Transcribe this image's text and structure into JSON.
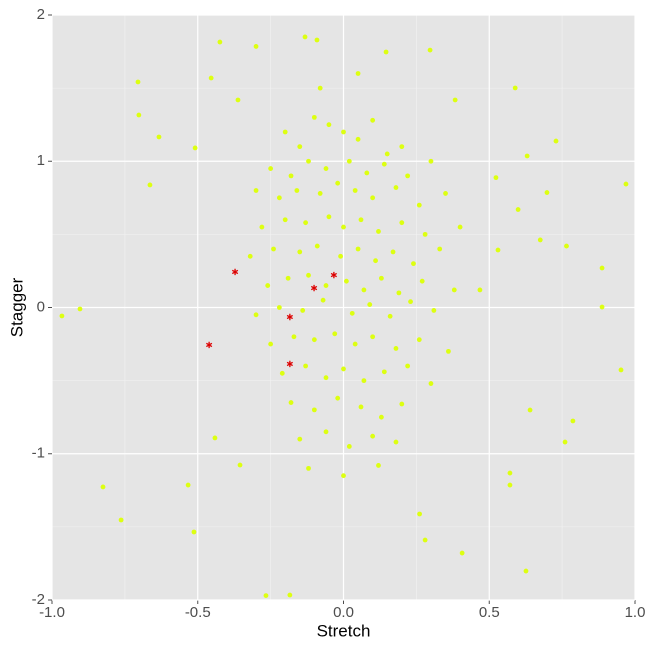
{
  "chart_data": {
    "type": "scatter",
    "x_label": "Stretch",
    "y_label": "Stagger",
    "xlim": [
      -1,
      1
    ],
    "ylim": [
      -2,
      2
    ],
    "xticks": [
      {
        "value": -1,
        "label": "-1.0"
      },
      {
        "value": -0.5,
        "label": "-0.5"
      },
      {
        "value": 0,
        "label": "0.0"
      },
      0.5,
      {
        "value": 1,
        "label": "1.0"
      }
    ],
    "yticks": [
      -2,
      -1,
      0,
      1,
      2
    ],
    "grid": true,
    "minor_grid": true,
    "series": [
      {
        "color": "#ddff11",
        "marker": "circle",
        "x": [
          -0.966,
          -0.904,
          -0.825,
          -0.763,
          -0.705,
          -0.702,
          -0.664,
          -0.633,
          -0.533,
          -0.513,
          -0.509,
          -0.454,
          -0.424,
          -0.362,
          -0.3,
          -0.441,
          -0.355,
          -0.266,
          -0.184,
          -0.132,
          -0.091,
          0.146,
          0.297,
          0.383,
          0.589,
          0.63,
          0.729,
          0.523,
          0.698,
          0.969,
          0.887,
          0.887,
          0.952,
          0.787,
          0.76,
          0.64,
          0.571,
          0.571,
          0.407,
          0.626,
          0.28,
          0.261,
          0.599,
          0.53,
          0.468,
          0.675,
          0.765,
          -0.2,
          -0.15,
          -0.1,
          -0.05,
          0,
          0.05,
          0.1,
          0.15,
          0.2,
          -0.25,
          -0.18,
          -0.12,
          -0.06,
          0.02,
          0.08,
          0.14,
          0.22,
          0.3,
          -0.3,
          -0.22,
          -0.16,
          -0.08,
          -0.02,
          0.04,
          0.1,
          0.18,
          0.26,
          0.35,
          -0.28,
          -0.2,
          -0.13,
          -0.05,
          0,
          0.06,
          0.12,
          0.2,
          0.28,
          0.4,
          -0.32,
          -0.24,
          -0.15,
          -0.09,
          -0.01,
          0.05,
          0.11,
          0.17,
          0.24,
          0.33,
          -0.26,
          -0.19,
          -0.12,
          -0.06,
          0.01,
          0.07,
          0.13,
          0.19,
          0.27,
          0.38,
          -0.3,
          -0.22,
          -0.14,
          -0.07,
          0.03,
          0.09,
          0.16,
          0.23,
          0.31,
          -0.25,
          -0.17,
          -0.1,
          -0.03,
          0.04,
          0.1,
          0.18,
          0.26,
          0.36,
          -0.21,
          -0.13,
          -0.06,
          0,
          0.07,
          0.14,
          0.22,
          0.3,
          -0.18,
          -0.1,
          -0.02,
          0.06,
          0.13,
          0.2,
          -0.15,
          -0.06,
          0.02,
          0.1,
          0.18,
          -0.12,
          0,
          0.12,
          -0.08,
          0.05
        ],
        "y": [
          -0.058,
          -0.01,
          -1.227,
          -1.453,
          1.542,
          1.316,
          0.838,
          1.166,
          -1.214,
          -1.535,
          1.091,
          1.569,
          1.815,
          1.419,
          1.785,
          -0.892,
          -1.077,
          -1.97,
          -1.966,
          1.85,
          1.829,
          1.747,
          1.76,
          1.419,
          1.501,
          1.036,
          1.138,
          0.888,
          0.786,
          0.844,
          0.27,
          0.003,
          -0.427,
          -0.776,
          -0.92,
          -0.701,
          -1.132,
          -1.214,
          -1.679,
          -1.802,
          -1.59,
          -1.412,
          0.67,
          0.393,
          0.12,
          0.462,
          0.42,
          1.2,
          1.1,
          1.3,
          1.25,
          1.2,
          1.15,
          1.28,
          1.05,
          1.1,
          0.95,
          0.9,
          1.0,
          0.95,
          1.0,
          0.92,
          0.98,
          0.9,
          1.0,
          0.8,
          0.75,
          0.8,
          0.78,
          0.85,
          0.8,
          0.75,
          0.82,
          0.7,
          0.78,
          0.55,
          0.6,
          0.58,
          0.62,
          0.55,
          0.6,
          0.52,
          0.58,
          0.5,
          0.55,
          0.35,
          0.4,
          0.38,
          0.42,
          0.35,
          0.4,
          0.32,
          0.38,
          0.3,
          0.4,
          0.15,
          0.2,
          0.22,
          0.15,
          0.18,
          0.12,
          0.2,
          0.1,
          0.18,
          0.12,
          -0.05,
          0,
          -0.02,
          0.05,
          -0.04,
          0.02,
          -0.06,
          0.04,
          -0.02,
          -0.25,
          -0.2,
          -0.22,
          -0.18,
          -0.25,
          -0.2,
          -0.28,
          -0.22,
          -0.3,
          -0.45,
          -0.4,
          -0.48,
          -0.42,
          -0.5,
          -0.44,
          -0.4,
          -0.52,
          -0.65,
          -0.7,
          -0.62,
          -0.68,
          -0.75,
          -0.66,
          -0.9,
          -0.85,
          -0.95,
          -0.88,
          -0.92,
          -1.1,
          -1.15,
          -1.08,
          1.5,
          1.6
        ]
      },
      {
        "color": "#dd0000",
        "marker": "asterisk",
        "x": [
          -0.372,
          -0.461,
          -0.184,
          -0.184,
          -0.101,
          -0.033
        ],
        "y": [
          0.243,
          -0.256,
          -0.065,
          -0.386,
          0.133,
          0.222
        ]
      }
    ]
  }
}
